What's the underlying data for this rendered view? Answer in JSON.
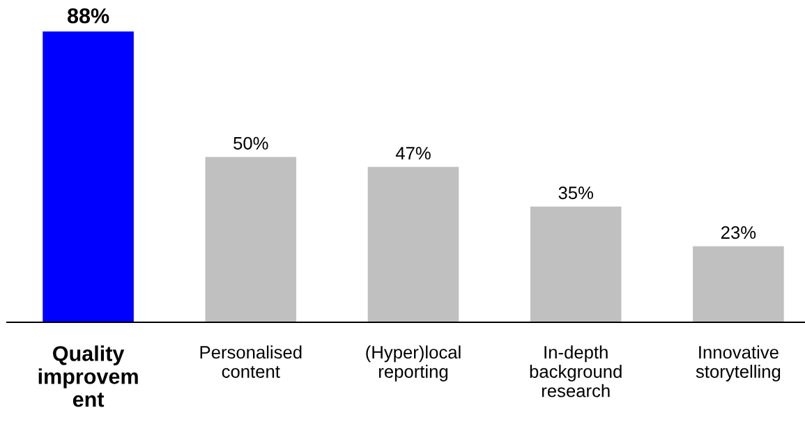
{
  "chart_data": {
    "type": "bar",
    "categories": [
      "Quality\nimprovem\nent",
      "Personalised\ncontent",
      "(Hyper)local\nreporting",
      "In-depth\nbackground\nresearch",
      "Innovative\nstorytelling"
    ],
    "values": [
      88,
      50,
      47,
      35,
      23
    ],
    "colors": [
      "#0000ff",
      "#c0c0c0",
      "#c0c0c0",
      "#c0c0c0",
      "#c0c0c0"
    ],
    "value_labels": [
      "88%",
      "50%",
      "47%",
      "35%",
      "23%"
    ]
  }
}
